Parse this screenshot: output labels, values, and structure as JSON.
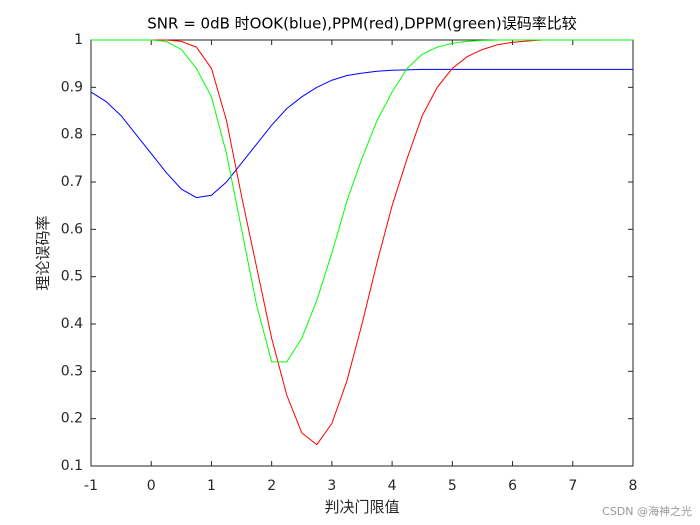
{
  "chart_data": {
    "type": "line",
    "title": "SNR = 0dB 时OOK(blue),PPM(red),DPPM(green)误码率比较",
    "xlabel": "判决门限值",
    "ylabel": "理论误码率",
    "watermark": "CSDN @海神之光",
    "x": [
      -1,
      -0.75,
      -0.5,
      -0.25,
      0,
      0.25,
      0.5,
      0.75,
      1,
      1.25,
      1.5,
      1.75,
      2,
      2.25,
      2.5,
      2.75,
      3,
      3.25,
      3.5,
      3.75,
      4,
      4.25,
      4.5,
      4.75,
      5,
      5.25,
      5.5,
      5.75,
      6,
      6.25,
      6.5,
      6.75,
      7,
      7.25,
      7.5,
      7.75,
      8
    ],
    "series": [
      {
        "name": "OOK",
        "color": "#0000ff",
        "values": [
          0.89,
          0.87,
          0.84,
          0.8,
          0.76,
          0.72,
          0.685,
          0.667,
          0.672,
          0.7,
          0.74,
          0.78,
          0.82,
          0.855,
          0.88,
          0.9,
          0.915,
          0.925,
          0.93,
          0.934,
          0.936,
          0.937,
          0.938,
          0.938,
          0.938,
          0.938,
          0.938,
          0.938,
          0.938,
          0.938,
          0.938,
          0.938,
          0.938,
          0.938,
          0.938,
          0.938,
          0.938
        ]
      },
      {
        "name": "PPM",
        "color": "#ff0000",
        "values": [
          1,
          1,
          1,
          1,
          1,
          1,
          0.997,
          0.985,
          0.94,
          0.83,
          0.67,
          0.52,
          0.37,
          0.25,
          0.17,
          0.145,
          0.19,
          0.28,
          0.4,
          0.53,
          0.65,
          0.75,
          0.84,
          0.9,
          0.94,
          0.965,
          0.98,
          0.99,
          0.995,
          0.998,
          1,
          1,
          1,
          1,
          1,
          1,
          1
        ]
      },
      {
        "name": "DPPM",
        "color": "#00ff00",
        "values": [
          1,
          1,
          1,
          1,
          1,
          0.997,
          0.98,
          0.94,
          0.88,
          0.76,
          0.6,
          0.44,
          0.32,
          0.32,
          0.37,
          0.45,
          0.55,
          0.66,
          0.75,
          0.83,
          0.89,
          0.94,
          0.97,
          0.985,
          0.993,
          0.997,
          0.999,
          1,
          1,
          1,
          1,
          1,
          1,
          1,
          1,
          1,
          1
        ]
      }
    ],
    "xlim": [
      -1,
      8
    ],
    "ylim": [
      0.1,
      1
    ],
    "xticks": [
      -1,
      0,
      1,
      2,
      3,
      4,
      5,
      6,
      7,
      8
    ],
    "yticks": [
      0.1,
      0.2,
      0.3,
      0.4,
      0.5,
      0.6,
      0.7,
      0.8,
      0.9,
      1
    ]
  }
}
